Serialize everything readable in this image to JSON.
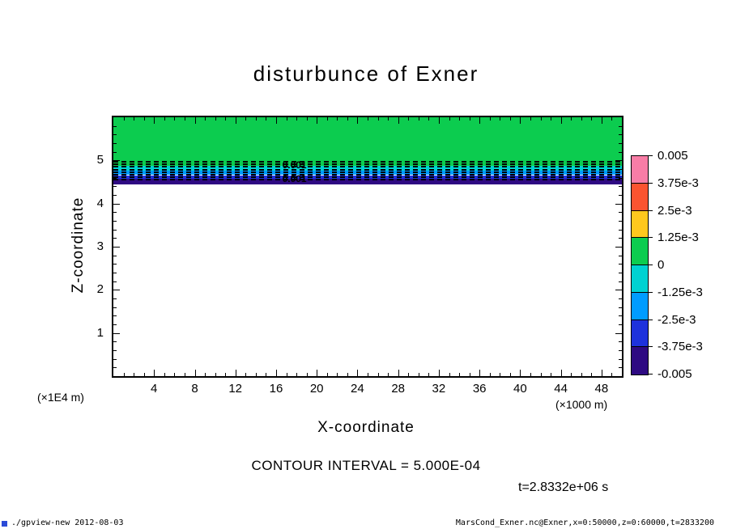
{
  "title": "disturbunce of Exner",
  "axes": {
    "x_label": "X-coordinate",
    "x_units": "(×1000 m)",
    "y_label": "Z-coordinate",
    "y_units": "(×1E4 m)"
  },
  "annotations": {
    "contour_interval": "CONTOUR INTERVAL = 5.000E-04",
    "time": "t=2.8332e+06 s"
  },
  "footer": {
    "left": "./gpview-new  2012-08-03",
    "right": "MarsCond_Exner.nc@Exner,x=0:50000,z=0:60000,t=2833200"
  },
  "chart_data": {
    "type": "heatmap",
    "title": "disturbunce of Exner",
    "xlabel": "X-coordinate",
    "x_units": "×1000 m",
    "ylabel": "Z-coordinate",
    "y_units": "×1E4 m",
    "xlim": [
      0,
      50
    ],
    "ylim": [
      0,
      6
    ],
    "x_ticks": [
      4,
      8,
      12,
      16,
      20,
      24,
      28,
      32,
      36,
      40,
      44,
      48
    ],
    "y_ticks": [
      1,
      2,
      3,
      4,
      5
    ],
    "grid": false,
    "legend_position": "right-colorbar",
    "contour_interval": "5.000E-04",
    "time_label": "t=2.8332e+06 s",
    "colorbar": {
      "position": "right",
      "tick_labels": [
        "0.005",
        "3.75e-3",
        "2.5e-3",
        "1.25e-3",
        "0",
        "-1.25e-3",
        "-2.5e-3",
        "-3.75e-3",
        "-0.005"
      ],
      "segment_colors_top_to_bottom": [
        "#f87da6",
        "#fb5430",
        "#ffc81e",
        "#0ccc4f",
        "#00d2d2",
        "#009cff",
        "#1e32dc",
        "#2e0a82"
      ]
    },
    "fill_bands": [
      {
        "z_top": 6.0,
        "z_bottom": 4.875,
        "color": "#0ccc4f",
        "value_range": "0 to 1.25e-3"
      },
      {
        "z_top": 4.875,
        "z_bottom": 4.76,
        "color": "#00d2d2",
        "value_range": "-1.25e-3 to 0"
      },
      {
        "z_top": 4.76,
        "z_bottom": 4.66,
        "color": "#009cff",
        "value_range": "-2.5e-3 to -1.25e-3"
      },
      {
        "z_top": 4.66,
        "z_bottom": 4.57,
        "color": "#1e32dc",
        "value_range": "-3.75e-3 to -2.5e-3"
      },
      {
        "z_top": 4.57,
        "z_bottom": 4.45,
        "color": "#2e0a82",
        "value_range": "-0.005 to -3.75e-3"
      }
    ],
    "dashed_contour_levels_z": [
      4.99,
      4.93,
      4.87,
      4.81,
      4.75,
      4.69,
      4.63,
      4.57
    ],
    "contour_labels": [
      {
        "text": "0.001",
        "x": 17.8,
        "z": 4.9
      },
      {
        "text": "0.001",
        "x": 17.8,
        "z": 4.58
      }
    ]
  }
}
